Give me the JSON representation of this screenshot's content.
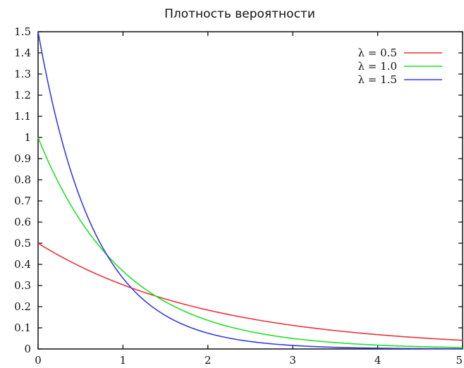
{
  "chart_data": {
    "type": "line",
    "title": "Плотность вероятности",
    "xlabel": "",
    "ylabel": "",
    "xlim": [
      0,
      5
    ],
    "ylim": [
      0,
      1.5
    ],
    "grid": false,
    "legend_position": "top-right",
    "x_ticks": [
      "0",
      "1",
      "2",
      "3",
      "4",
      "5"
    ],
    "y_ticks": [
      "0",
      "0.1",
      "0.2",
      "0.3",
      "0.4",
      "0.5",
      "0.6",
      "0.7",
      "0.8",
      "0.9",
      "1",
      "1.1",
      "1.2",
      "1.3",
      "1.4",
      "1.5"
    ],
    "x": [
      0,
      0.25,
      0.5,
      0.75,
      1,
      1.25,
      1.5,
      1.75,
      2,
      2.25,
      2.5,
      2.75,
      3,
      3.25,
      3.5,
      3.75,
      4,
      4.25,
      4.5,
      4.75,
      5
    ],
    "series": [
      {
        "name": "λ = 0.5",
        "color": "#e8343a",
        "values": [
          0.5,
          0.441,
          0.389,
          0.344,
          0.303,
          0.268,
          0.236,
          0.208,
          0.184,
          0.162,
          0.143,
          0.126,
          0.112,
          0.098,
          0.087,
          0.077,
          0.068,
          0.06,
          0.053,
          0.047,
          0.041
        ]
      },
      {
        "name": "λ = 1.0",
        "color": "#22e02a",
        "values": [
          1.0,
          0.779,
          0.607,
          0.472,
          0.368,
          0.287,
          0.223,
          0.174,
          0.135,
          0.105,
          0.082,
          0.064,
          0.05,
          0.039,
          0.03,
          0.024,
          0.018,
          0.014,
          0.011,
          0.009,
          0.007
        ]
      },
      {
        "name": "λ = 1.5",
        "color": "#3a3ae0",
        "values": [
          1.5,
          1.031,
          0.709,
          0.487,
          0.335,
          0.23,
          0.158,
          0.109,
          0.075,
          0.051,
          0.035,
          0.024,
          0.017,
          0.011,
          0.008,
          0.005,
          0.004,
          0.003,
          0.002,
          0.001,
          0.001
        ]
      }
    ]
  }
}
